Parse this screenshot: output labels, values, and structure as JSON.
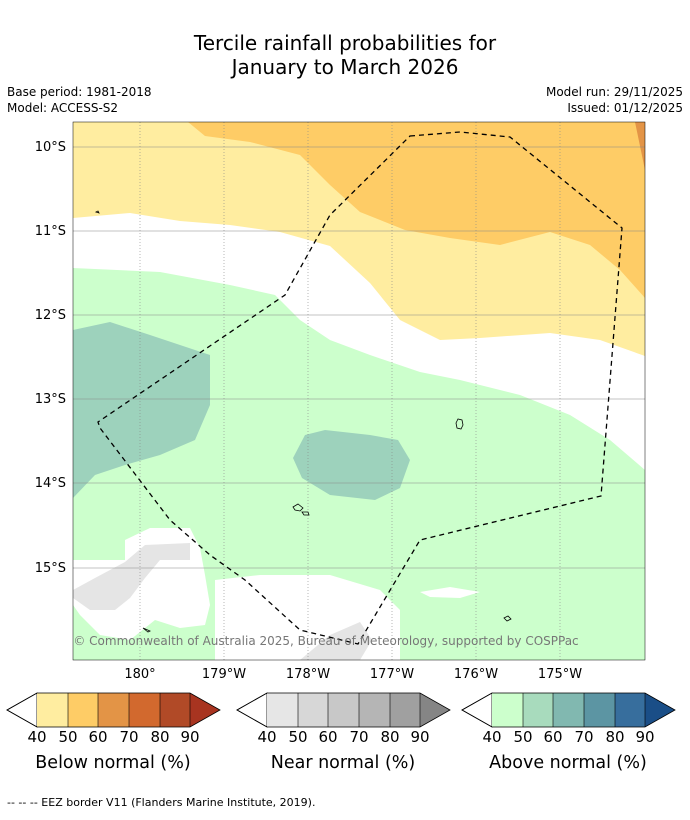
{
  "title": {
    "line1": "Tercile rainfall probabilities for",
    "line2": "January to March 2026"
  },
  "meta": {
    "base_period": "Base period: 1981-2018",
    "model": "Model: ACCESS-S2",
    "model_run": "Model run: 29/11/2025",
    "issued": "Issued: 01/12/2025"
  },
  "map": {
    "lat_labels": [
      "10°S",
      "11°S",
      "12°S",
      "13°S",
      "14°S",
      "15°S"
    ],
    "lon_labels": [
      "180°",
      "179°W",
      "178°W",
      "177°W",
      "176°W",
      "175°W"
    ],
    "attribution": "© Commonwealth of Australia 2025, Bureau of Meteorology, supported by COSPPac",
    "colors": {
      "land_water": "#ffffff",
      "below_40": "#ffeda0",
      "below_50": "#fecc66",
      "below_60": "#e39446",
      "above_40": "#ccffcc",
      "above_50": "#9dd2bc",
      "near_40": "#e5e5e5"
    }
  },
  "colorbars": [
    {
      "label": "Below normal (%)",
      "ticks": [
        "40",
        "50",
        "60",
        "70",
        "80",
        "90"
      ],
      "colors": [
        "#ffeda0",
        "#fecc66",
        "#e39446",
        "#d2692e",
        "#b14a27",
        "#a83420"
      ]
    },
    {
      "label": "Near normal (%)",
      "ticks": [
        "40",
        "50",
        "60",
        "70",
        "80",
        "90"
      ],
      "colors": [
        "#e6e6e6",
        "#d7d7d7",
        "#c8c8c8",
        "#b5b5b5",
        "#a0a0a0",
        "#858585"
      ]
    },
    {
      "label": "Above normal (%)",
      "ticks": [
        "40",
        "50",
        "60",
        "70",
        "80",
        "90"
      ],
      "colors": [
        "#ccffcc",
        "#a8dbbd",
        "#81b8b0",
        "#5c95a3",
        "#376e9d",
        "#1a4e87"
      ]
    }
  ],
  "footnote": "--  --  -- EEZ border V11 (Flanders Marine Institute, 2019)."
}
